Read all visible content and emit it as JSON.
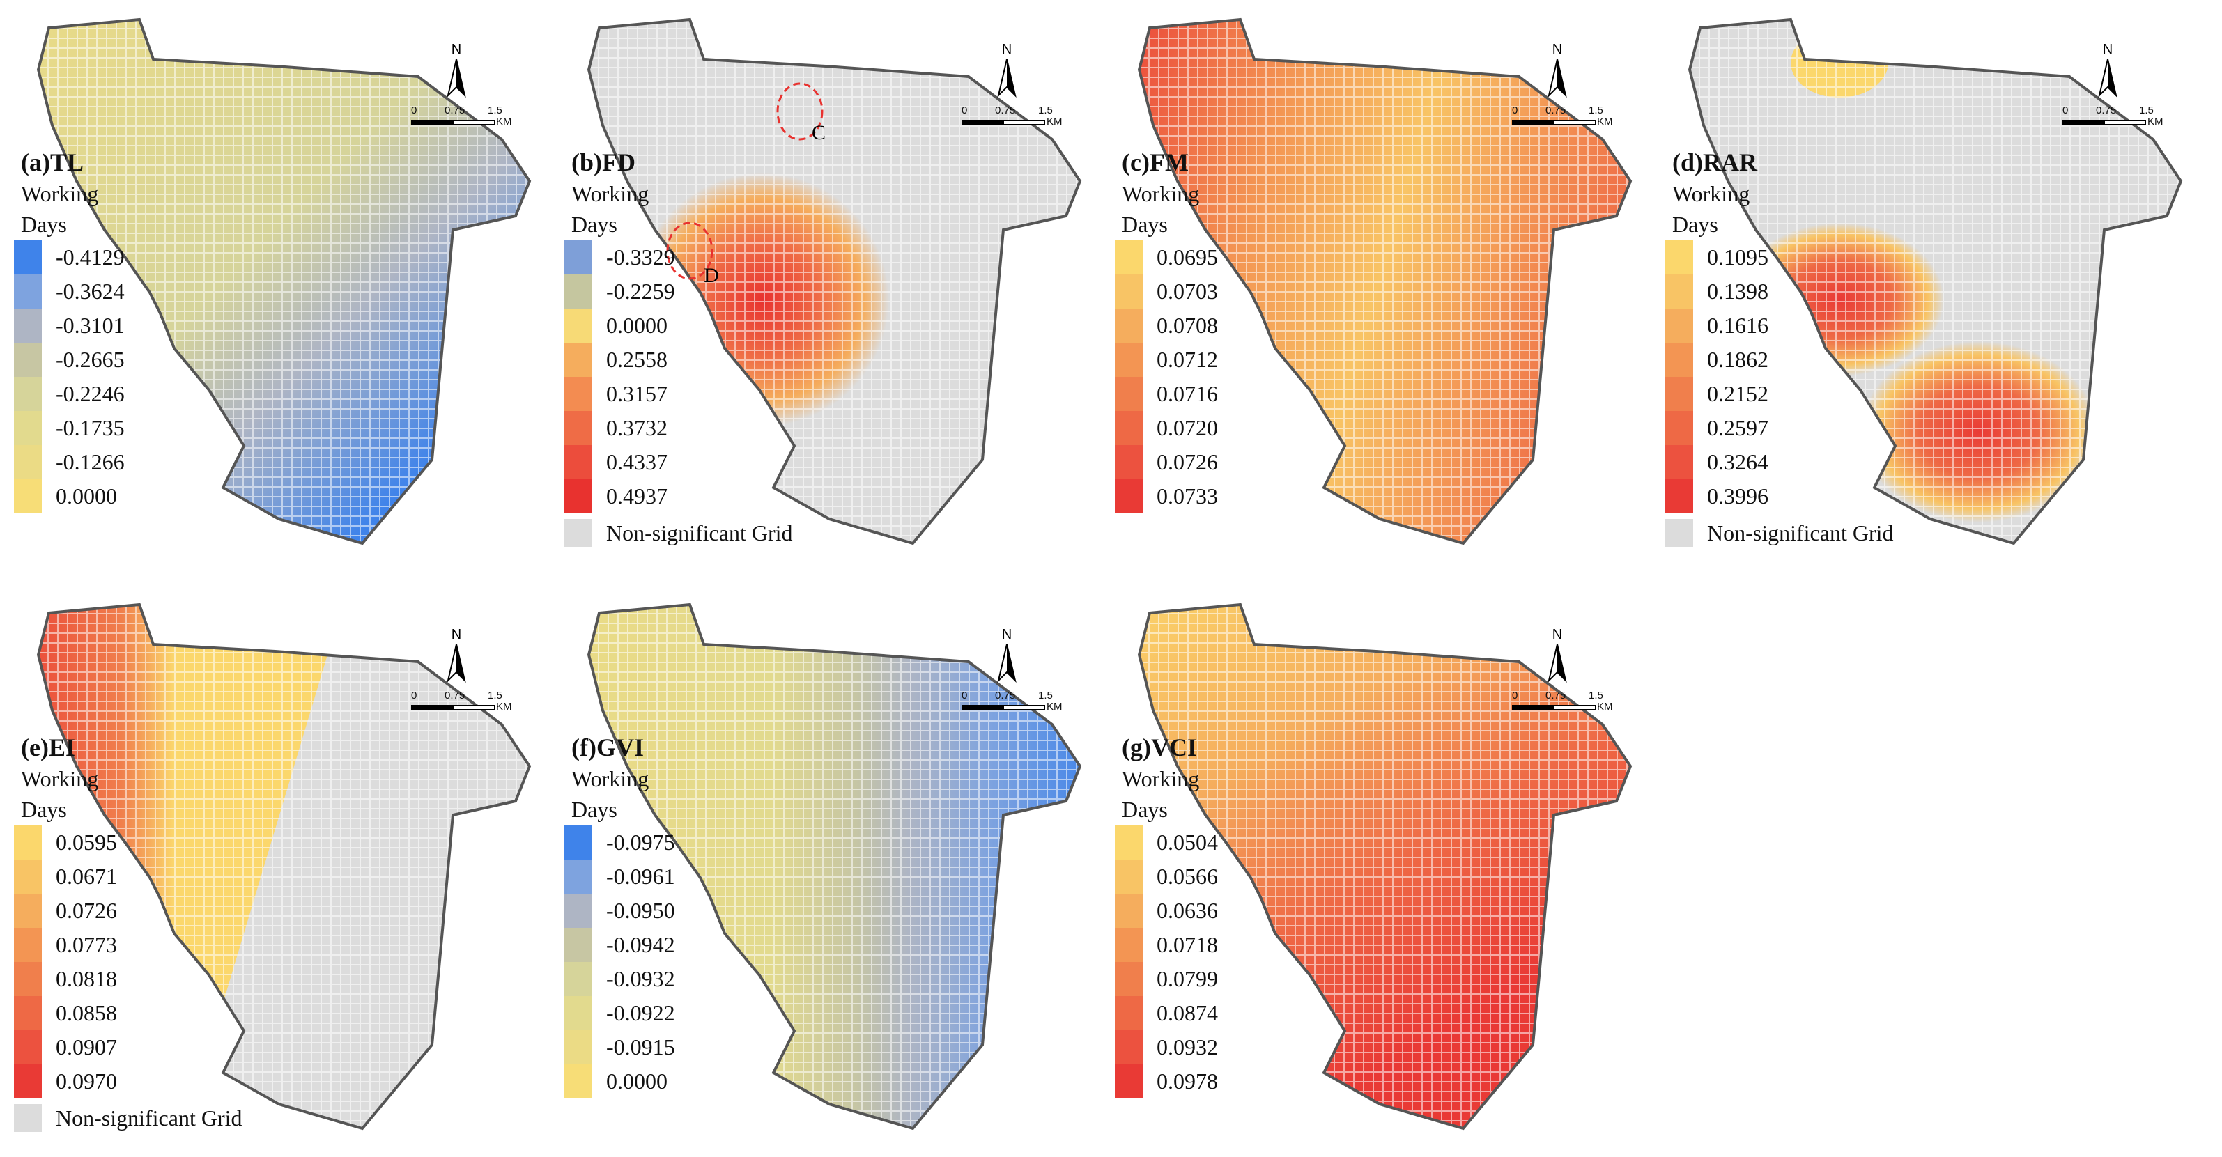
{
  "legend_caption_line1": "Working",
  "legend_caption_line2": "Days",
  "non_significant_label": "Non-significant Grid",
  "north_label": "N",
  "scale": {
    "t0": "0",
    "t1": "0.75",
    "t2": "1.5",
    "unit": "KM"
  },
  "colors": {
    "blue_scale": [
      "#3f83ea",
      "#7ea3df",
      "#aeb5c4",
      "#c7c6a3",
      "#d6d49a",
      "#e2da8e",
      "#ebdb85",
      "#f7dd77"
    ],
    "warm_scale": [
      "#fbd76c",
      "#f8c465",
      "#f5ad5d",
      "#f39553",
      "#f07f4c",
      "#ee6945",
      "#ec523f",
      "#e93a35"
    ],
    "mixed_fd": [
      "#7e9fd8",
      "#c5c69f",
      "#f7da76",
      "#f5ad5d",
      "#f38c51",
      "#ef6c46",
      "#ec4d3c",
      "#e8322f"
    ],
    "nonsig": "#dcdcdc",
    "outline": "#555555"
  },
  "panels": [
    {
      "id": "a",
      "title": "(a)TL",
      "values": [
        "-0.4129",
        "-0.3624",
        "-0.3101",
        "-0.2665",
        "-0.2246",
        "-0.1735",
        "-0.1266",
        "0.0000"
      ]
    },
    {
      "id": "b",
      "title": "(b)FD",
      "values": [
        "-0.3329",
        "-0.2259",
        "0.0000",
        "0.2558",
        "0.3157",
        "0.3732",
        "0.4337",
        "0.4937"
      ],
      "annotations": [
        "C",
        "D"
      ]
    },
    {
      "id": "c",
      "title": "(c)FM",
      "values": [
        "0.0695",
        "0.0703",
        "0.0708",
        "0.0712",
        "0.0716",
        "0.0720",
        "0.0726",
        "0.0733"
      ]
    },
    {
      "id": "d",
      "title": "(d)RAR",
      "values": [
        "0.1095",
        "0.1398",
        "0.1616",
        "0.1862",
        "0.2152",
        "0.2597",
        "0.3264",
        "0.3996"
      ]
    },
    {
      "id": "e",
      "title": "(e)EI",
      "values": [
        "0.0595",
        "0.0671",
        "0.0726",
        "0.0773",
        "0.0818",
        "0.0858",
        "0.0907",
        "0.0970"
      ]
    },
    {
      "id": "f",
      "title": "(f)GVI",
      "values": [
        "-0.0975",
        "-0.0961",
        "-0.0950",
        "-0.0942",
        "-0.0932",
        "-0.0922",
        "-0.0915",
        "0.0000"
      ]
    },
    {
      "id": "g",
      "title": "(g)VCI",
      "values": [
        "0.0504",
        "0.0566",
        "0.0636",
        "0.0718",
        "0.0799",
        "0.0874",
        "0.0932",
        "0.0978"
      ]
    }
  ]
}
